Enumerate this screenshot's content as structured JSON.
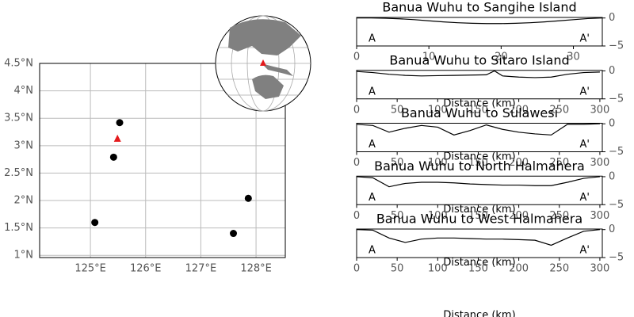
{
  "chart_data": [
    {
      "type": "scatter",
      "grid": true,
      "xlim": [
        124.08,
        128.53
      ],
      "ylim": [
        0.96,
        4.5
      ],
      "xticks": [
        {
          "value": 125,
          "label": "125°E"
        },
        {
          "value": 126,
          "label": "126°E"
        },
        {
          "value": 127,
          "label": "127°E"
        },
        {
          "value": 128,
          "label": "128°E"
        }
      ],
      "yticks": [
        {
          "value": 1,
          "label": "1°N"
        },
        {
          "value": 1.5,
          "label": "1.5°N"
        },
        {
          "value": 2,
          "label": "2°N"
        },
        {
          "value": 2.5,
          "label": "2.5°N"
        },
        {
          "value": 3,
          "label": "3°N"
        },
        {
          "value": 3.5,
          "label": "3.5°N"
        },
        {
          "value": 4,
          "label": "4°N"
        },
        {
          "value": 4.5,
          "label": "4.5°N"
        }
      ],
      "series": [
        {
          "color": "#000000",
          "marker": "circle",
          "x": [
            125.08,
            125.53,
            125.42,
            127.59,
            127.86
          ],
          "values": [
            1.6,
            3.42,
            2.79,
            1.4,
            2.04
          ]
        },
        {
          "color": "#e41a1c",
          "marker": "triangle",
          "x": [
            125.49
          ],
          "values": [
            3.13
          ]
        }
      ]
    },
    {
      "type": "line",
      "title": "Banua Wuhu to Sangihe Island",
      "xlabel": "Distance (km)",
      "annotations": [
        "A",
        "A'"
      ],
      "color": "#000000",
      "xlim": [
        0,
        34
      ],
      "ylim": [
        -5,
        0.1
      ],
      "xticks": [
        0,
        10,
        20,
        30
      ],
      "yticks": [
        0,
        {
          "value": -5,
          "label": "−5"
        }
      ],
      "x": [
        0,
        2,
        4,
        6,
        8,
        10,
        12,
        14,
        16,
        18,
        20,
        22,
        24,
        26,
        28,
        30,
        32,
        34
      ],
      "values": [
        0,
        0,
        -0.05,
        -0.15,
        -0.3,
        -0.5,
        -0.7,
        -0.85,
        -0.95,
        -1.0,
        -1.0,
        -0.95,
        -0.85,
        -0.7,
        -0.5,
        -0.3,
        -0.1,
        0
      ]
    },
    {
      "type": "line",
      "title": "Banua Wuhu to Sitaro Island",
      "xlabel": "Distance (km)",
      "annotations": [
        "A",
        "A'"
      ],
      "color": "#000000",
      "xlim": [
        0,
        303
      ],
      "ylim": [
        -5,
        0.1
      ],
      "xticks": [
        0,
        50,
        100,
        150,
        200,
        250,
        300
      ],
      "yticks": [
        0,
        {
          "value": -5,
          "label": "−5"
        }
      ],
      "x": [
        0,
        20,
        40,
        60,
        80,
        100,
        120,
        140,
        160,
        170,
        180,
        200,
        220,
        240,
        260,
        280,
        300
      ],
      "values": [
        -0.1,
        -0.3,
        -0.6,
        -0.8,
        -0.9,
        -0.85,
        -0.8,
        -0.75,
        -0.7,
        0.0,
        -0.9,
        -1.1,
        -1.2,
        -1.1,
        -0.6,
        -0.3,
        -0.2
      ]
    },
    {
      "type": "line",
      "title": "Banua Wuhu to Sulawesi",
      "xlabel": "Distance (km)",
      "annotations": [
        "A",
        "A'"
      ],
      "color": "#000000",
      "xlim": [
        0,
        303
      ],
      "ylim": [
        -5,
        0.1
      ],
      "xticks": [
        0,
        50,
        100,
        150,
        200,
        250,
        300
      ],
      "yticks": [
        0,
        {
          "value": -5,
          "label": "−5"
        }
      ],
      "x": [
        0,
        20,
        40,
        60,
        80,
        100,
        120,
        140,
        160,
        180,
        200,
        220,
        240,
        260,
        280,
        300
      ],
      "values": [
        -0.1,
        -0.3,
        -1.5,
        -0.8,
        -0.3,
        -0.6,
        -2.0,
        -1.2,
        -0.2,
        -1.0,
        -1.5,
        -1.8,
        -2.0,
        -0.1,
        -0.1,
        0.0
      ]
    },
    {
      "type": "line",
      "title": "Banua Wuhu to North Halmahera",
      "xlabel": "Distance (km)",
      "annotations": [
        "A",
        "A'"
      ],
      "color": "#000000",
      "xlim": [
        0,
        303
      ],
      "ylim": [
        -5,
        0.1
      ],
      "xticks": [
        0,
        50,
        100,
        150,
        200,
        250,
        300
      ],
      "yticks": [
        0,
        {
          "value": -5,
          "label": "−5"
        }
      ],
      "x": [
        0,
        20,
        40,
        60,
        80,
        100,
        120,
        140,
        160,
        180,
        200,
        220,
        240,
        260,
        280,
        300
      ],
      "values": [
        0,
        -0.2,
        -1.8,
        -1.2,
        -1.0,
        -1.0,
        -1.1,
        -1.3,
        -1.4,
        -1.5,
        -1.5,
        -1.6,
        -1.6,
        -1.0,
        -0.3,
        0.0
      ]
    },
    {
      "type": "line",
      "title": "Banua Wuhu to West Halmahera",
      "xlabel": "Distance (km)",
      "annotations": [
        "A",
        "A'"
      ],
      "color": "#000000",
      "xlim": [
        0,
        303
      ],
      "ylim": [
        -5,
        0.1
      ],
      "xticks": [
        0,
        50,
        100,
        150,
        200,
        250,
        300
      ],
      "yticks": [
        0,
        {
          "value": -5,
          "label": "−5"
        }
      ],
      "x": [
        0,
        20,
        40,
        60,
        80,
        100,
        120,
        140,
        160,
        180,
        200,
        220,
        240,
        260,
        280,
        300
      ],
      "values": [
        0,
        -0.1,
        -1.5,
        -2.3,
        -1.7,
        -1.5,
        -1.5,
        -1.6,
        -1.7,
        -1.7,
        -1.8,
        -1.9,
        -2.8,
        -1.5,
        -0.3,
        0.0
      ]
    }
  ]
}
